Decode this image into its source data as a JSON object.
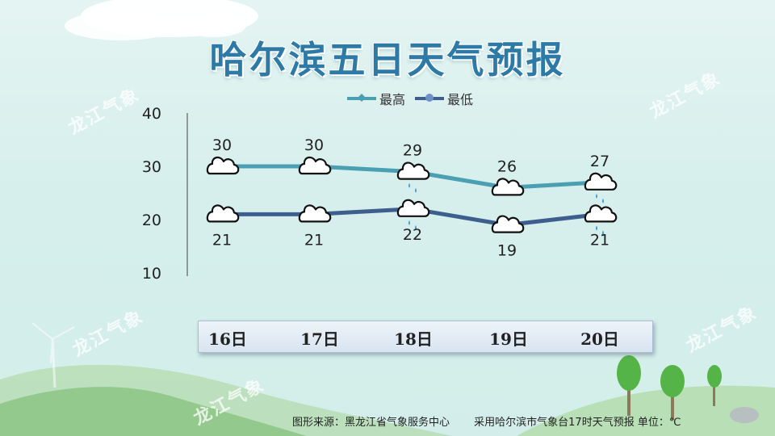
{
  "title": "哈尔滨五日天气预报",
  "watermark": "龙江气象",
  "footer": {
    "source": "图形来源：黑龙江省气象服务中心",
    "note": "采用哈尔滨市气象台17时天气预报 单位：℃"
  },
  "colors": {
    "high_line": "#4a9fb3",
    "low_line": "#3e5f8e",
    "title": "#2e7aa6",
    "rain_drop": "#3a9bd5"
  },
  "chart_data": {
    "type": "line",
    "categories": [
      "16日",
      "17日",
      "18日",
      "19日",
      "20日"
    ],
    "series": [
      {
        "name": "最高",
        "values": [
          30,
          30,
          29,
          26,
          27
        ],
        "icons": [
          "cloudy",
          "cloudy",
          "rain",
          "cloudy",
          "rain"
        ]
      },
      {
        "name": "最低",
        "values": [
          21,
          21,
          22,
          19,
          21
        ],
        "icons": [
          "cloudy",
          "cloudy",
          "rain",
          "cloudy",
          "rain"
        ]
      }
    ],
    "yticks": [
      10,
      20,
      30,
      40
    ],
    "ylim": [
      10,
      40
    ],
    "grid": false,
    "legend": "top-center",
    "xlabel": "",
    "ylabel": ""
  }
}
